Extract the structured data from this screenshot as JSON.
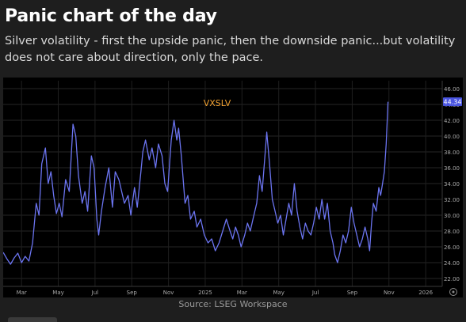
{
  "header": {
    "title": "Panic chart of the day",
    "subtitle": "Silver volatility - first the upside panic, then the downside panic...but volatility does not care about direction, only the pace."
  },
  "source": "Source: LSEG Workspace",
  "colors": {
    "background": "#1e1e1e",
    "plot_bg": "#000000",
    "series_line": "#6b74f0",
    "series_label": "#f0a030",
    "last_value_badge": "#4a55e0"
  },
  "chart_data": {
    "type": "line",
    "title": "",
    "xlabel": "",
    "ylabel": "",
    "series_label": "VXSLV",
    "last_value_label": "44.34",
    "ylim": [
      21,
      47
    ],
    "y_ticks": [
      "22.00",
      "24.00",
      "26.00",
      "28.00",
      "30.00",
      "32.00",
      "34.00",
      "36.00",
      "38.00",
      "40.00",
      "42.00",
      "44.00",
      "46.00"
    ],
    "x_ticks": [
      "Mar",
      "May",
      "Jul",
      "Sep",
      "Nov",
      "2025",
      "Mar",
      "May",
      "Jul",
      "Sep",
      "Nov",
      "2026"
    ],
    "x_tick_positions": [
      1.0,
      3.0,
      5.0,
      7.0,
      9.0,
      11.0,
      13.0,
      15.0,
      17.0,
      19.0,
      21.0,
      23.0
    ],
    "xlim": [
      0,
      23.9
    ],
    "grid": true,
    "series": [
      {
        "values": [
          [
            0.0,
            25.3
          ],
          [
            0.2,
            24.5
          ],
          [
            0.4,
            23.8
          ],
          [
            0.6,
            24.6
          ],
          [
            0.8,
            25.2
          ],
          [
            1.0,
            24.0
          ],
          [
            1.2,
            24.8
          ],
          [
            1.4,
            24.2
          ],
          [
            1.6,
            26.5
          ],
          [
            1.8,
            31.5
          ],
          [
            1.95,
            30.0
          ],
          [
            2.1,
            36.5
          ],
          [
            2.3,
            38.5
          ],
          [
            2.45,
            34.0
          ],
          [
            2.6,
            35.5
          ],
          [
            2.75,
            32.5
          ],
          [
            2.9,
            30.2
          ],
          [
            3.05,
            31.5
          ],
          [
            3.2,
            29.8
          ],
          [
            3.4,
            34.5
          ],
          [
            3.6,
            33.0
          ],
          [
            3.8,
            41.5
          ],
          [
            3.95,
            40.0
          ],
          [
            4.1,
            35.0
          ],
          [
            4.3,
            31.5
          ],
          [
            4.45,
            33.0
          ],
          [
            4.6,
            30.5
          ],
          [
            4.8,
            37.5
          ],
          [
            4.95,
            36.0
          ],
          [
            5.1,
            29.5
          ],
          [
            5.2,
            27.5
          ],
          [
            5.35,
            30.5
          ],
          [
            5.55,
            33.5
          ],
          [
            5.75,
            36.0
          ],
          [
            5.95,
            31.0
          ],
          [
            6.1,
            35.5
          ],
          [
            6.3,
            34.5
          ],
          [
            6.45,
            33.0
          ],
          [
            6.6,
            31.5
          ],
          [
            6.8,
            32.5
          ],
          [
            6.95,
            30.0
          ],
          [
            7.15,
            33.5
          ],
          [
            7.3,
            31.0
          ],
          [
            7.5,
            35.5
          ],
          [
            7.6,
            38.0
          ],
          [
            7.75,
            39.5
          ],
          [
            7.95,
            37.0
          ],
          [
            8.1,
            38.5
          ],
          [
            8.3,
            36.0
          ],
          [
            8.45,
            39.0
          ],
          [
            8.65,
            37.5
          ],
          [
            8.8,
            34.0
          ],
          [
            8.95,
            33.0
          ],
          [
            9.15,
            39.5
          ],
          [
            9.3,
            42.0
          ],
          [
            9.45,
            39.5
          ],
          [
            9.55,
            41.0
          ],
          [
            9.7,
            37.5
          ],
          [
            9.9,
            31.5
          ],
          [
            10.05,
            32.5
          ],
          [
            10.2,
            29.5
          ],
          [
            10.4,
            30.5
          ],
          [
            10.55,
            28.5
          ],
          [
            10.75,
            29.5
          ],
          [
            10.95,
            27.5
          ],
          [
            11.15,
            26.5
          ],
          [
            11.35,
            27.0
          ],
          [
            11.55,
            25.5
          ],
          [
            11.75,
            26.5
          ],
          [
            11.95,
            28.0
          ],
          [
            12.15,
            29.5
          ],
          [
            12.35,
            28.0
          ],
          [
            12.5,
            27.0
          ],
          [
            12.65,
            28.5
          ],
          [
            12.8,
            27.5
          ],
          [
            12.95,
            26.0
          ],
          [
            13.15,
            27.5
          ],
          [
            13.3,
            29.0
          ],
          [
            13.45,
            28.0
          ],
          [
            13.6,
            29.5
          ],
          [
            13.8,
            31.5
          ],
          [
            13.95,
            35.0
          ],
          [
            14.1,
            33.0
          ],
          [
            14.25,
            37.5
          ],
          [
            14.35,
            40.5
          ],
          [
            14.5,
            36.5
          ],
          [
            14.65,
            32.0
          ],
          [
            14.8,
            30.5
          ],
          [
            14.95,
            29.0
          ],
          [
            15.1,
            30.0
          ],
          [
            15.25,
            27.5
          ],
          [
            15.4,
            29.5
          ],
          [
            15.55,
            31.5
          ],
          [
            15.7,
            30.0
          ],
          [
            15.85,
            34.0
          ],
          [
            16.0,
            30.5
          ],
          [
            16.15,
            28.5
          ],
          [
            16.3,
            27.0
          ],
          [
            16.45,
            29.0
          ],
          [
            16.6,
            28.0
          ],
          [
            16.75,
            27.5
          ],
          [
            16.9,
            29.0
          ],
          [
            17.05,
            31.0
          ],
          [
            17.2,
            29.5
          ],
          [
            17.35,
            32.0
          ],
          [
            17.5,
            29.5
          ],
          [
            17.65,
            31.5
          ],
          [
            17.8,
            28.0
          ],
          [
            17.95,
            26.5
          ],
          [
            18.05,
            25.0
          ],
          [
            18.2,
            24.0
          ],
          [
            18.35,
            25.5
          ],
          [
            18.5,
            27.5
          ],
          [
            18.65,
            26.5
          ],
          [
            18.8,
            28.0
          ],
          [
            18.95,
            31.0
          ],
          [
            19.1,
            29.0
          ],
          [
            19.25,
            27.5
          ],
          [
            19.4,
            26.0
          ],
          [
            19.55,
            27.0
          ],
          [
            19.7,
            28.5
          ],
          [
            19.85,
            27.0
          ],
          [
            19.95,
            25.5
          ],
          [
            20.05,
            29.0
          ],
          [
            20.15,
            31.5
          ],
          [
            20.3,
            30.5
          ],
          [
            20.45,
            33.5
          ],
          [
            20.55,
            32.5
          ],
          [
            20.65,
            34.0
          ],
          [
            20.75,
            35.5
          ],
          [
            20.85,
            39.0
          ],
          [
            20.95,
            44.34
          ]
        ]
      }
    ]
  }
}
